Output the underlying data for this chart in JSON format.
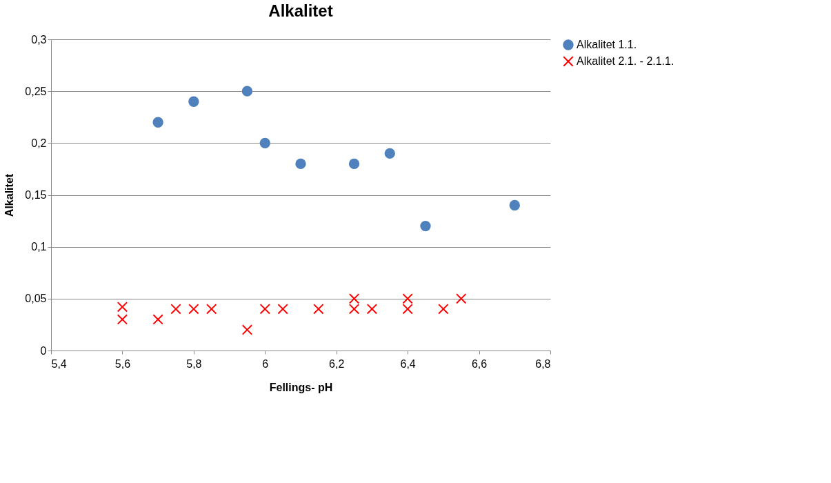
{
  "chart_data": {
    "type": "scatter",
    "title": "Alkalitet",
    "xlabel": "Fellings- pH",
    "ylabel": "Alkalitet",
    "xlim": [
      5.4,
      6.8
    ],
    "xticks": [
      {
        "value": 5.4,
        "label": "5,4"
      },
      {
        "value": 5.6,
        "label": "5,6"
      },
      {
        "value": 5.8,
        "label": "5,8"
      },
      {
        "value": 6,
        "label": "6"
      },
      {
        "value": 6.2,
        "label": "6,2"
      },
      {
        "value": 6.4,
        "label": "6,4"
      },
      {
        "value": 6.6,
        "label": "6,6"
      },
      {
        "value": 6.8,
        "label": "6,8"
      }
    ],
    "ylim": [
      0,
      0.3
    ],
    "yticks": [
      0,
      {
        "value": 0.05,
        "label": "0,05"
      },
      {
        "value": 0.1,
        "label": "0,1"
      },
      {
        "value": 0.15,
        "label": "0,15"
      },
      {
        "value": 0.2,
        "label": "0,2"
      },
      {
        "value": 0.25,
        "label": "0,25"
      },
      {
        "value": 0.3,
        "label": "0,3"
      }
    ],
    "grid": "y",
    "legend": "right",
    "series": [
      {
        "name": "Alkalitet 1.1.",
        "color": "#4f81bd",
        "marker": "circle",
        "x": [
          5.7,
          5.8,
          5.95,
          6.0,
          6.1,
          6.25,
          6.35,
          6.45,
          6.7
        ],
        "values": [
          0.22,
          0.24,
          0.25,
          0.2,
          0.18,
          0.18,
          0.19,
          0.12,
          0.14
        ]
      },
      {
        "name": "Alkalitet 2.1. - 2.1.1.",
        "color": "#ff0000",
        "marker": "cross",
        "x": [
          5.6,
          5.6,
          5.7,
          5.75,
          5.8,
          5.85,
          5.95,
          6.0,
          6.05,
          6.15,
          6.25,
          6.25,
          6.3,
          6.4,
          6.4,
          6.5,
          6.55
        ],
        "values": [
          0.042,
          0.03,
          0.03,
          0.04,
          0.04,
          0.04,
          0.02,
          0.04,
          0.04,
          0.04,
          0.05,
          0.04,
          0.04,
          0.05,
          0.04,
          0.04,
          0.05
        ]
      }
    ]
  }
}
